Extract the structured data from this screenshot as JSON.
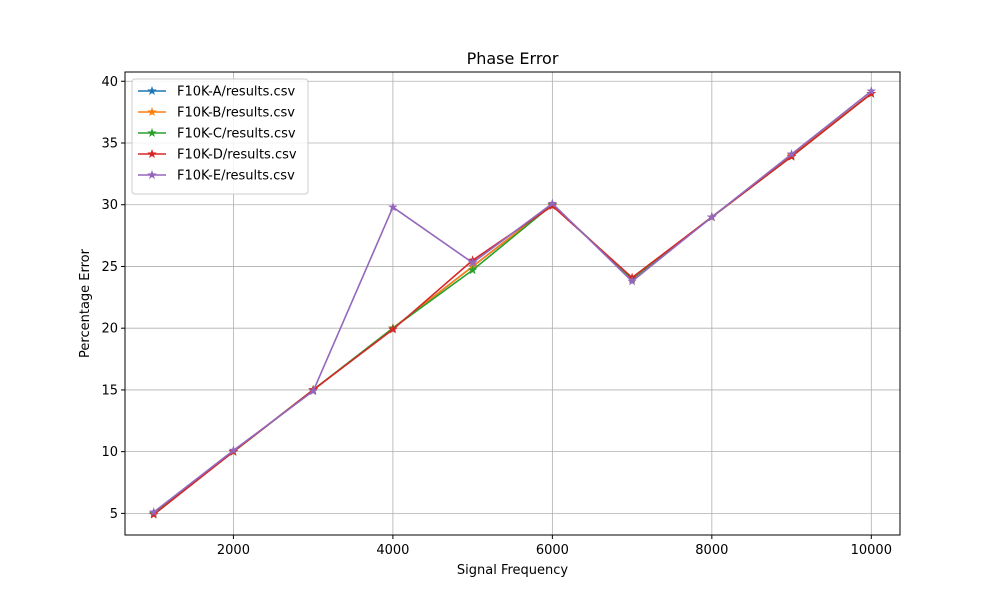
{
  "chart_data": {
    "type": "line",
    "title": "Phase Error",
    "xlabel": "Signal Frequency",
    "ylabel": "Percentage Error",
    "xlim": [
      640,
      10360
    ],
    "ylim": [
      3.25,
      40.75
    ],
    "xticks": [
      2000,
      4000,
      6000,
      8000,
      10000
    ],
    "yticks": [
      5,
      10,
      15,
      20,
      25,
      30,
      35,
      40
    ],
    "grid": true,
    "legend_position": "top-left",
    "marker": "star",
    "x": [
      1000,
      2000,
      3000,
      4000,
      5000,
      6000,
      7000,
      8000,
      9000,
      10000
    ],
    "series": [
      {
        "name": "F10K-A/results.csv",
        "color": "#1f77b4",
        "values": [
          5.0,
          10.0,
          15.0,
          20.0,
          25.0,
          30.0,
          24.0,
          29.0,
          34.0,
          39.0
        ]
      },
      {
        "name": "F10K-B/results.csv",
        "color": "#ff7f0e",
        "values": [
          5.0,
          10.0,
          15.0,
          20.0,
          25.0,
          30.0,
          24.0,
          29.0,
          34.0,
          39.0
        ]
      },
      {
        "name": "F10K-C/results.csv",
        "color": "#2ca02c",
        "values": [
          5.0,
          10.0,
          15.0,
          20.0,
          24.7,
          30.0,
          24.0,
          29.0,
          33.9,
          39.0
        ]
      },
      {
        "name": "F10K-D/results.csv",
        "color": "#d62728",
        "values": [
          4.9,
          10.0,
          15.0,
          19.9,
          25.5,
          29.9,
          24.1,
          29.0,
          33.9,
          39.0
        ]
      },
      {
        "name": "F10K-E/results.csv",
        "color": "#9467bd",
        "values": [
          5.1,
          10.1,
          14.9,
          29.8,
          25.3,
          30.1,
          23.8,
          29.0,
          34.1,
          39.2
        ]
      }
    ]
  }
}
